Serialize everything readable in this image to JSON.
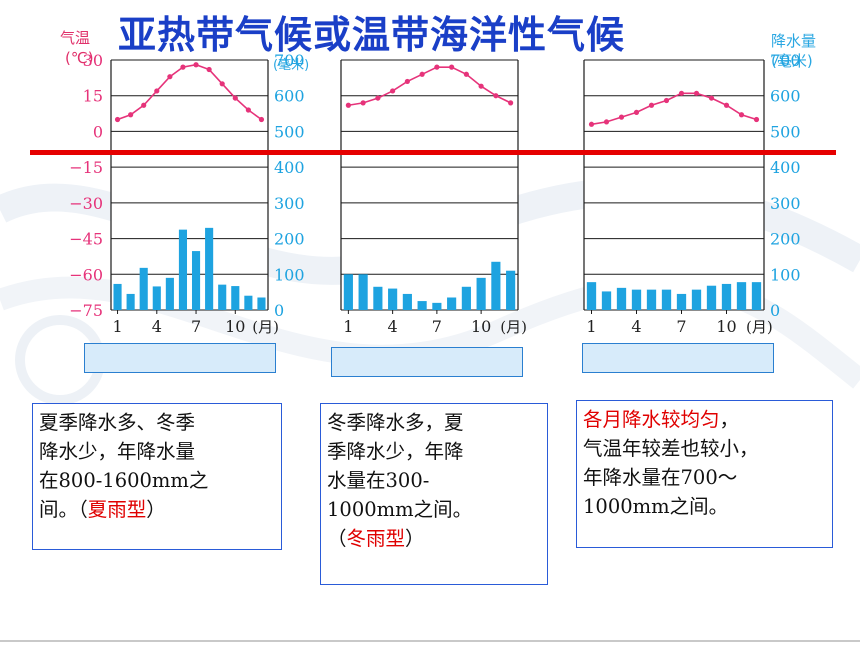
{
  "title": "亚热带气候或温带海洋性气候",
  "axes": {
    "left_title_1": "气温",
    "left_title_2": "(℃)",
    "right_title_1_top": "(毫米)",
    "right_title_2_1": "降水量",
    "right_title_2_2": "(毫米)",
    "month_unit": "(月)"
  },
  "colors": {
    "temp_line": "#e6337a",
    "precip_bar": "#1ea3e0",
    "grid": "#1a1a1a",
    "red_line": "#e60000",
    "title": "#1a3fc7"
  },
  "chart_data": [
    {
      "type": "bar",
      "xlabel": "(月)",
      "ylabel_left": "气温(℃)",
      "ylabel_right": "(毫米)",
      "x_tick_labels": [
        "1",
        "4",
        "7",
        "10"
      ],
      "temp_ticks": [
        30,
        15,
        0,
        -15,
        -30,
        -45,
        -60,
        -75
      ],
      "precip_ticks": [
        700,
        600,
        500,
        400,
        300,
        200,
        100,
        0
      ],
      "temp_ylim": [
        -75,
        30
      ],
      "precip_ylim": [
        0,
        700
      ],
      "months": [
        1,
        2,
        3,
        4,
        5,
        6,
        7,
        8,
        9,
        10,
        11,
        12
      ],
      "temperature": [
        5,
        7,
        11,
        17,
        23,
        27,
        28,
        26,
        20,
        14,
        9,
        5
      ],
      "precipitation": [
        73,
        45,
        118,
        66,
        90,
        225,
        165,
        230,
        71,
        67,
        40,
        35
      ]
    },
    {
      "type": "bar",
      "xlabel": "(月)",
      "x_tick_labels": [
        "1",
        "4",
        "7",
        "10"
      ],
      "temp_ylim": [
        -75,
        30
      ],
      "precip_ylim": [
        0,
        700
      ],
      "months": [
        1,
        2,
        3,
        4,
        5,
        6,
        7,
        8,
        9,
        10,
        11,
        12
      ],
      "temperature": [
        11,
        12,
        14,
        17,
        21,
        24,
        27,
        27,
        24,
        19,
        15,
        12
      ],
      "precipitation": [
        100,
        100,
        65,
        60,
        45,
        25,
        20,
        35,
        65,
        90,
        135,
        110
      ]
    },
    {
      "type": "bar",
      "xlabel": "(月)",
      "x_tick_labels": [
        "1",
        "4",
        "7",
        "10"
      ],
      "precip_ticks": [
        700,
        600,
        500,
        400,
        300,
        200,
        100,
        0
      ],
      "temp_ylim": [
        -75,
        30
      ],
      "precip_ylim": [
        0,
        700
      ],
      "months": [
        1,
        2,
        3,
        4,
        5,
        6,
        7,
        8,
        9,
        10,
        11,
        12
      ],
      "temperature": [
        3,
        4,
        6,
        8,
        11,
        13,
        16,
        16,
        14,
        11,
        7,
        5
      ],
      "precipitation": [
        78,
        52,
        62,
        57,
        57,
        57,
        45,
        57,
        68,
        73,
        78,
        78
      ]
    }
  ],
  "descriptions": [
    {
      "lines": [
        "夏季降水多、冬季",
        "降水少，年降水量",
        "在800-1600mm之"
      ],
      "line4_prefix": "间。（",
      "line4_highlight": "夏雨型",
      "line4_suffix": "）"
    },
    {
      "lines": [
        "冬季降水多，夏",
        "季降水少，年降",
        "水量在300-",
        "1000mm之间。"
      ],
      "line5_prefix": "（",
      "line5_highlight": "冬雨型",
      "line5_suffix": "）"
    },
    {
      "line1_highlight": "各月降水较均匀",
      "line1_suffix": "，",
      "lines": [
        "气温年较差也较小，",
        "年降水量在700～",
        "1000mm之间。"
      ]
    }
  ]
}
